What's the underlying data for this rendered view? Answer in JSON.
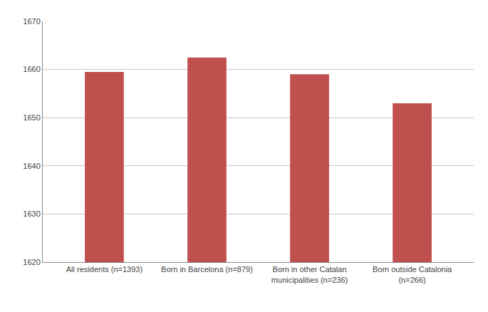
{
  "chart_data": {
    "type": "bar",
    "categories": [
      "All residents (n=1393)",
      "Born in Barcelona (n=879)",
      "Born in other Catalan\nmunicipalities (n=236)",
      "Born outside Catalonia\n(n=266)"
    ],
    "values": [
      1659.5,
      1662.5,
      1659.0,
      1653.0
    ],
    "color": "#c0504d",
    "ylim": [
      1620,
      1670
    ],
    "yticks": [
      1620,
      1630,
      1640,
      1650,
      1660,
      1670
    ],
    "grid": true
  }
}
